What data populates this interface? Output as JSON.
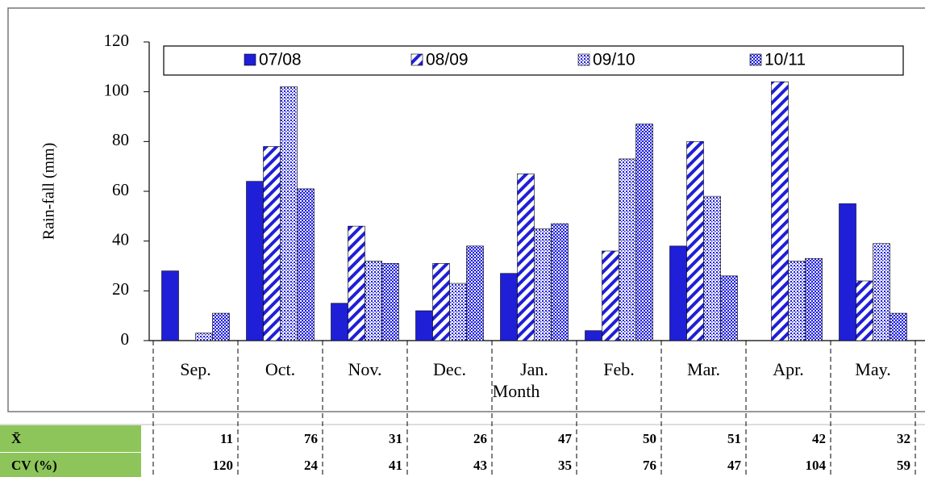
{
  "chart_data": {
    "type": "bar",
    "y_label": "Rain-fall (mm)",
    "x_label": "Month",
    "categories": [
      "Sep.",
      "Oct.",
      "Nov.",
      "Dec.",
      "Jan.",
      "Feb.",
      "Mar.",
      "Apr.",
      "May."
    ],
    "series": [
      {
        "name": "07/08",
        "color": "#1f1fd8",
        "pattern": "solid",
        "values": [
          28,
          64,
          15,
          12,
          27,
          4,
          38,
          0,
          55
        ]
      },
      {
        "name": "08/09",
        "color": "#1f1fd8",
        "pattern": "diagonal",
        "values": [
          0,
          78,
          46,
          31,
          67,
          36,
          80,
          104,
          24
        ]
      },
      {
        "name": "09/10",
        "color": "#1f1fd8",
        "pattern": "dots",
        "values": [
          3,
          102,
          32,
          23,
          45,
          73,
          58,
          32,
          39
        ]
      },
      {
        "name": "10/11",
        "color": "#1f1fd8",
        "pattern": "checker",
        "values": [
          11,
          61,
          31,
          38,
          47,
          87,
          26,
          33,
          11
        ]
      }
    ],
    "ylim": [
      0,
      120
    ],
    "yticks": [
      0,
      20,
      40,
      60,
      80,
      100,
      120
    ],
    "legend": "top"
  },
  "table": {
    "rows": [
      {
        "label": "X̄",
        "values": [
          11,
          76,
          31,
          26,
          47,
          50,
          51,
          42,
          32
        ]
      },
      {
        "label": "CV (%)",
        "values": [
          120,
          24,
          41,
          43,
          35,
          76,
          47,
          104,
          59
        ]
      }
    ]
  }
}
